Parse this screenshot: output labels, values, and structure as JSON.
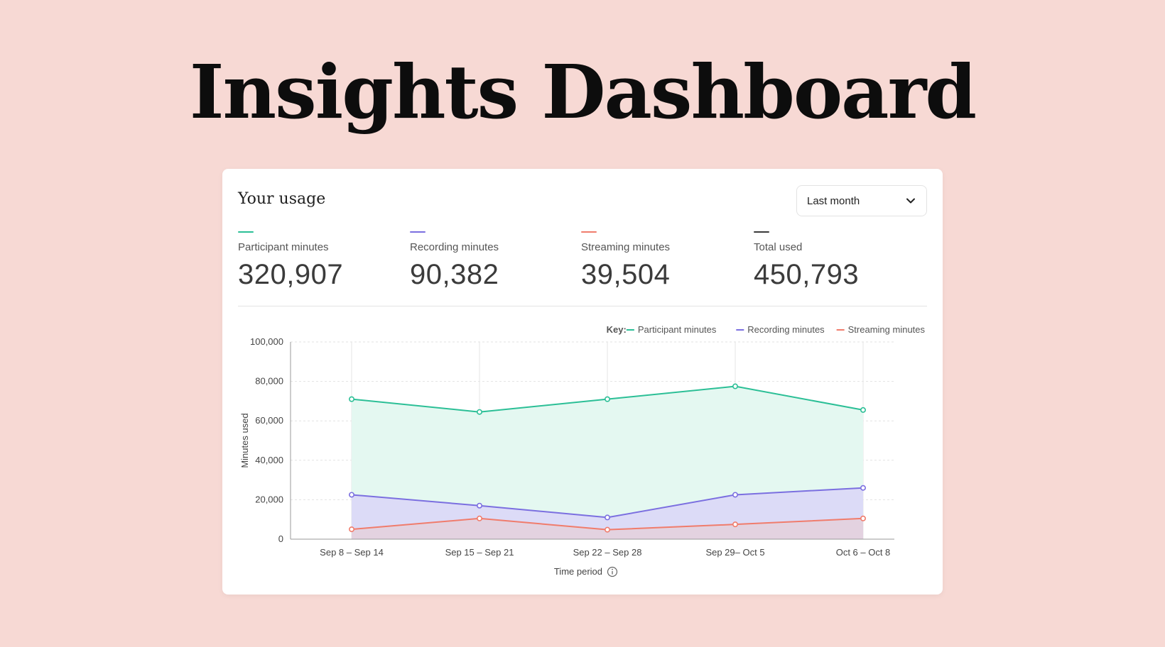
{
  "page": {
    "title": "Insights Dashboard",
    "background": "#f7d9d4"
  },
  "card": {
    "title": "Your usage",
    "period_select": {
      "value": "Last month",
      "icon": "chevron-down-icon"
    }
  },
  "stats": [
    {
      "label": "Participant minutes",
      "value": "320,907",
      "color": "#2bbf96"
    },
    {
      "label": "Recording minutes",
      "value": "90,382",
      "color": "#7b6fe0"
    },
    {
      "label": "Streaming minutes",
      "value": "39,504",
      "color": "#f07c6c"
    },
    {
      "label": "Total used",
      "value": "450,793",
      "color": "#3a3a3a"
    }
  ],
  "chart_data": {
    "type": "area",
    "legend_title": "Key:",
    "legend_position": "top-right",
    "xlabel": "Time period",
    "xlabel_icon": "info-icon",
    "ylabel": "Minutes used",
    "ylim": [
      0,
      100000
    ],
    "yticks": [
      {
        "value": 0,
        "label": "0"
      },
      {
        "value": 20000,
        "label": "20,000"
      },
      {
        "value": 40000,
        "label": "40,000"
      },
      {
        "value": 60000,
        "label": "60,000"
      },
      {
        "value": 80000,
        "label": "80,000"
      },
      {
        "value": 100000,
        "label": "100,000"
      }
    ],
    "categories": [
      "Sep 8 – Sep 14",
      "Sep 15 – Sep 21",
      "Sep 22 – Sep 28",
      "Sep 29– Oct 5",
      "Oct 6 – Oct 8"
    ],
    "grid": true,
    "series": [
      {
        "name": "Participant minutes",
        "color": "#2bbf96",
        "fill": "#e4f8f1",
        "values": [
          71000,
          64500,
          71000,
          77500,
          65500
        ]
      },
      {
        "name": "Recording minutes",
        "color": "#7b6fe0",
        "fill": "#dcdbf7",
        "values": [
          22500,
          17000,
          11000,
          22500,
          26000
        ]
      },
      {
        "name": "Streaming minutes",
        "color": "#f07c6c",
        "fill": "#e3d2e0",
        "values": [
          5000,
          10500,
          4800,
          7500,
          10500
        ]
      }
    ]
  }
}
